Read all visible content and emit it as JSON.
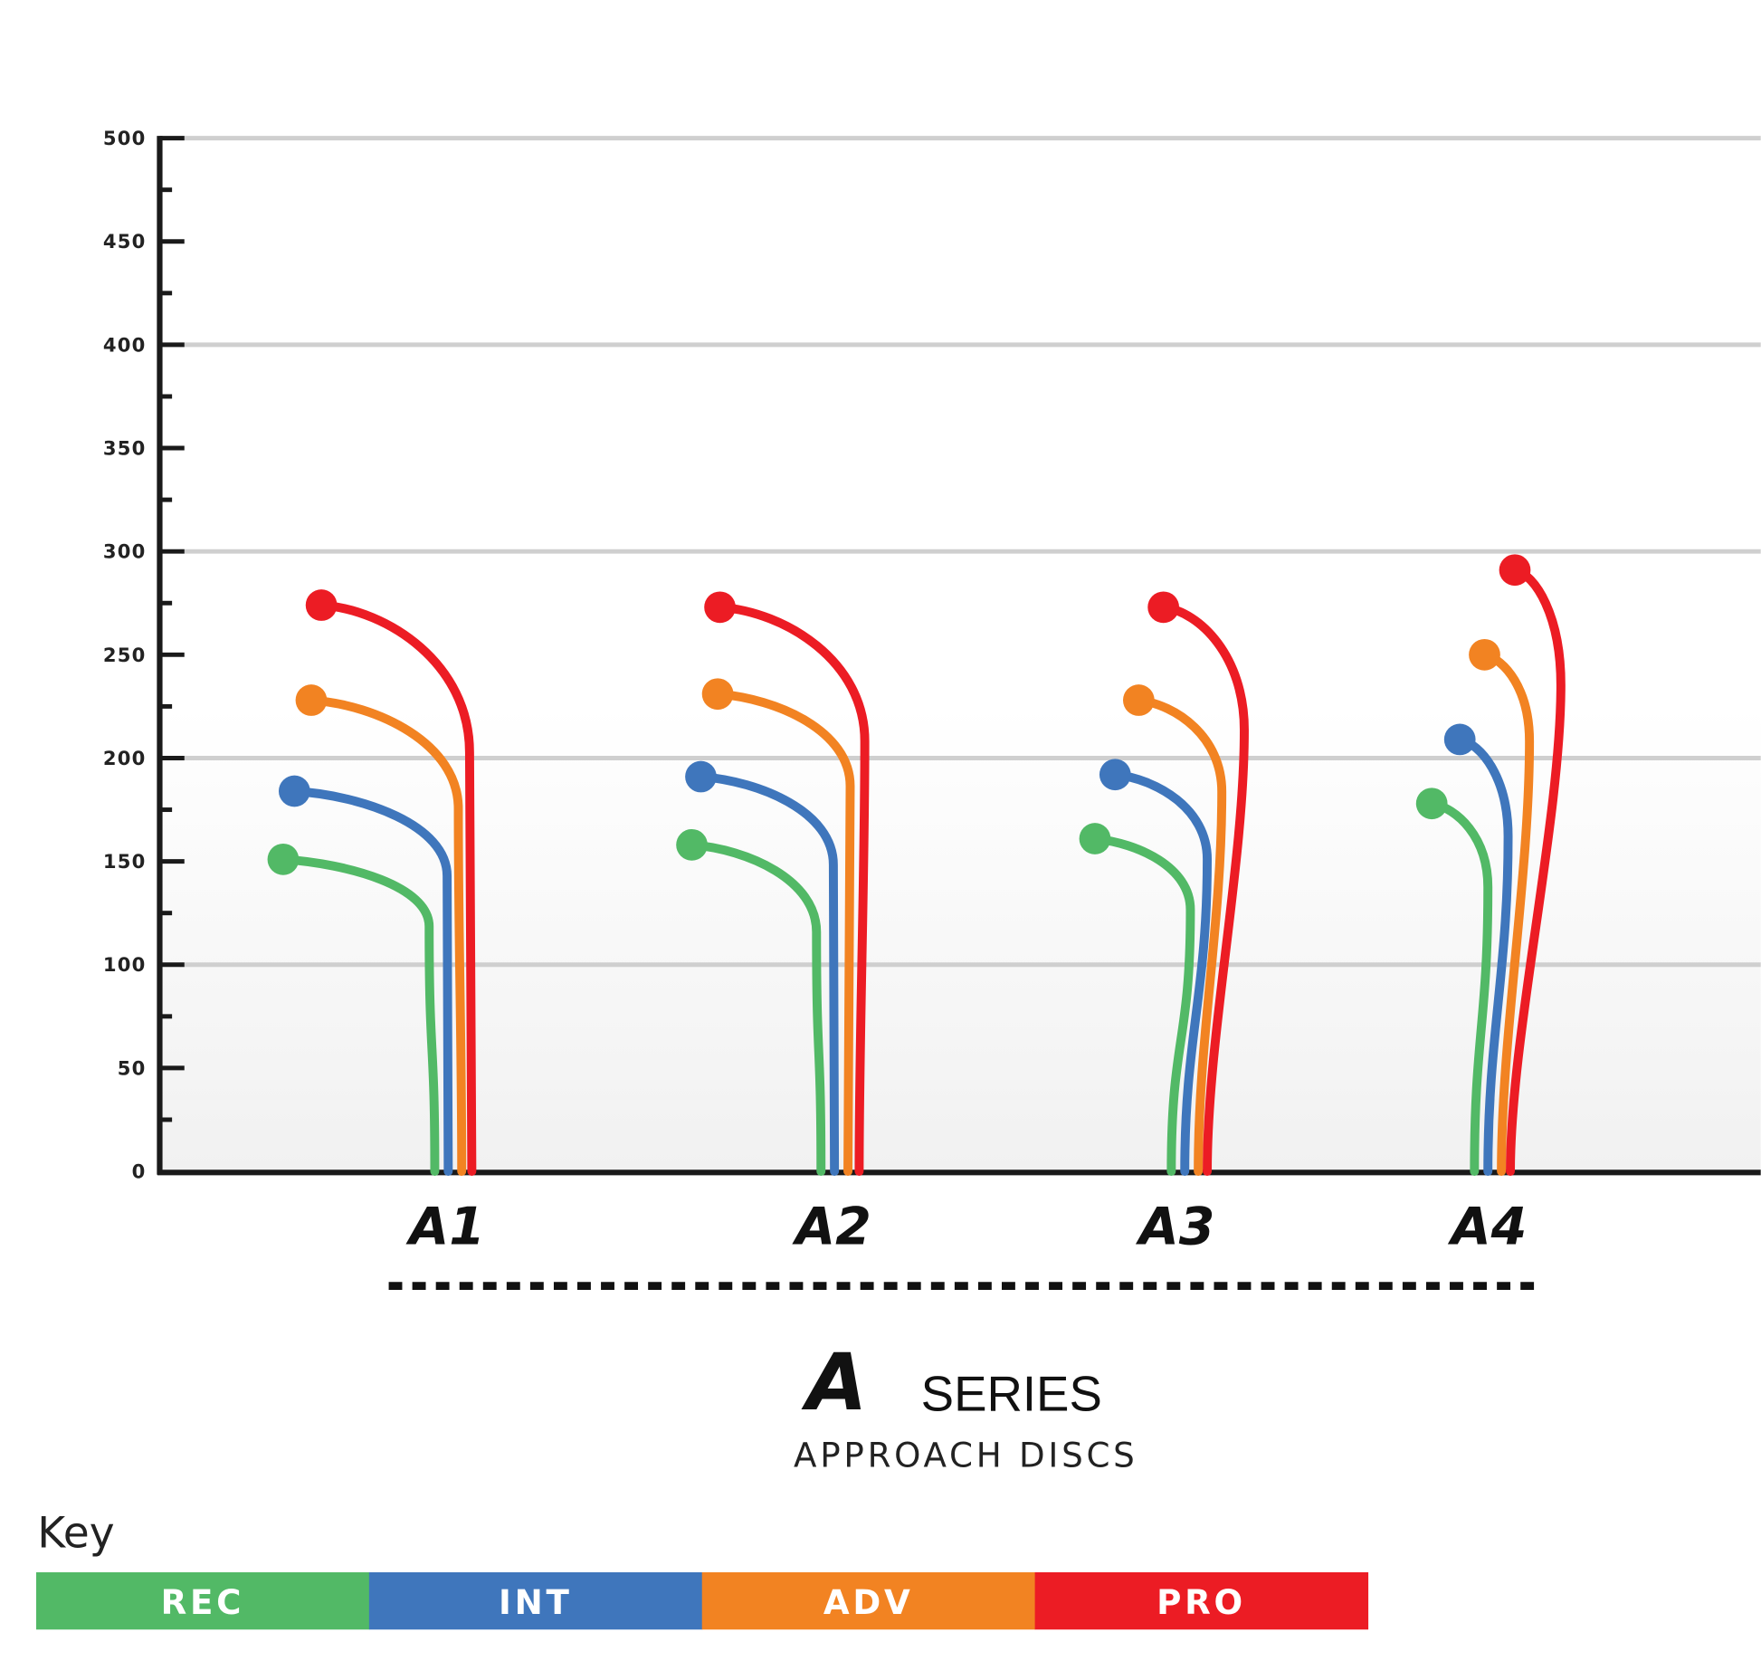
{
  "chart_data": {
    "type": "line",
    "title": "",
    "subtitle": "APPROACH DISCS",
    "brand_logo": "A SERIES",
    "series_label": "SERIES",
    "ylabel": "",
    "ylim": [
      0,
      500
    ],
    "yticks": [
      "0",
      "50",
      "100",
      "150",
      "200",
      "250",
      "300",
      "350",
      "400",
      "450",
      "500"
    ],
    "grid": true,
    "categories": [
      "A1",
      "A2",
      "A3",
      "A4"
    ],
    "legend": {
      "title": "Key",
      "placement": "bottom-left",
      "items": [
        {
          "label": "REC",
          "color": "#52b966"
        },
        {
          "label": "INT",
          "color": "#3f76bc"
        },
        {
          "label": "ADV",
          "color": "#f28322"
        },
        {
          "label": "PRO",
          "color": "#ec1c24"
        }
      ]
    },
    "series": [
      {
        "name": "REC",
        "color": "#52b966",
        "values": [
          151,
          158,
          161,
          178
        ]
      },
      {
        "name": "INT",
        "color": "#3f76bc",
        "values": [
          184,
          191,
          192,
          209
        ]
      },
      {
        "name": "ADV",
        "color": "#f28322",
        "values": [
          228,
          231,
          228,
          250
        ]
      },
      {
        "name": "PRO",
        "color": "#ec1c24",
        "values": [
          274,
          273,
          273,
          291
        ]
      }
    ]
  }
}
